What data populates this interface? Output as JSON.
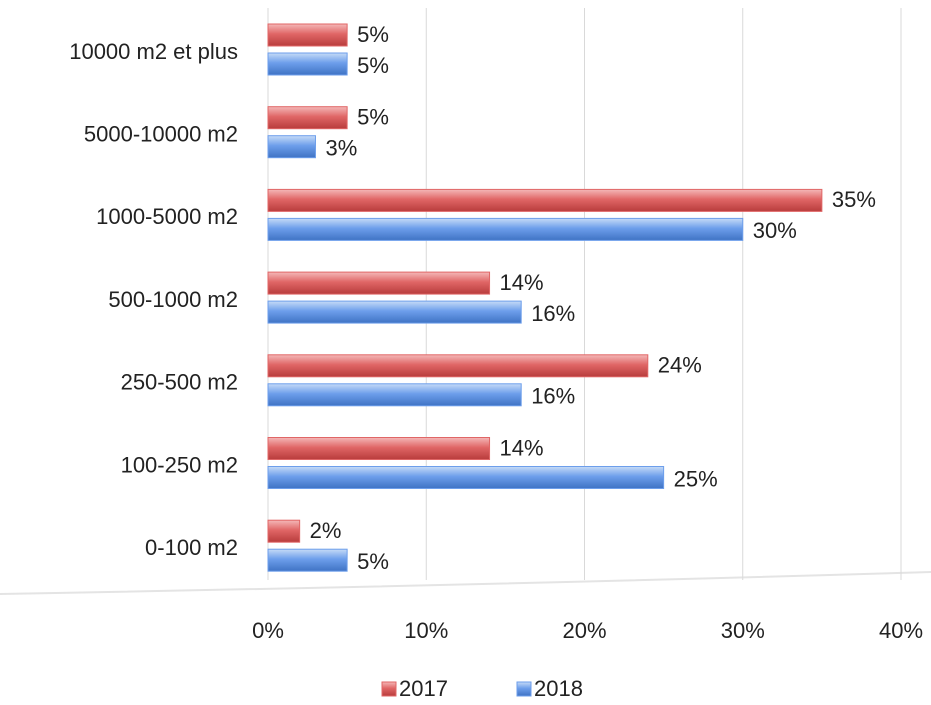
{
  "chart_data": {
    "type": "bar",
    "orientation": "horizontal",
    "categories": [
      "10000 m2 et plus",
      "5000-10000 m2",
      "1000-5000 m2",
      "500-1000 m2",
      "250-500 m2",
      "100-250 m2",
      "0-100 m2"
    ],
    "series": [
      {
        "name": "2017",
        "color": "#e06666",
        "values": [
          5,
          5,
          35,
          14,
          24,
          14,
          2
        ],
        "value_labels": [
          "5%",
          "5%",
          "35%",
          "14%",
          "24%",
          "14%",
          "2%"
        ]
      },
      {
        "name": "2018",
        "color": "#6d9eeb",
        "values": [
          5,
          3,
          30,
          16,
          16,
          25,
          5
        ],
        "value_labels": [
          "5%",
          "3%",
          "30%",
          "16%",
          "16%",
          "25%",
          "5%"
        ]
      }
    ],
    "xlim": [
      0,
      40
    ],
    "xticks": [
      {
        "value": 0,
        "label": "0%"
      },
      {
        "value": 10,
        "label": "10%"
      },
      {
        "value": 20,
        "label": "20%"
      },
      {
        "value": 30,
        "label": "30%"
      },
      {
        "value": 40,
        "label": "40%"
      }
    ],
    "grid": true,
    "legend": "bottom"
  }
}
